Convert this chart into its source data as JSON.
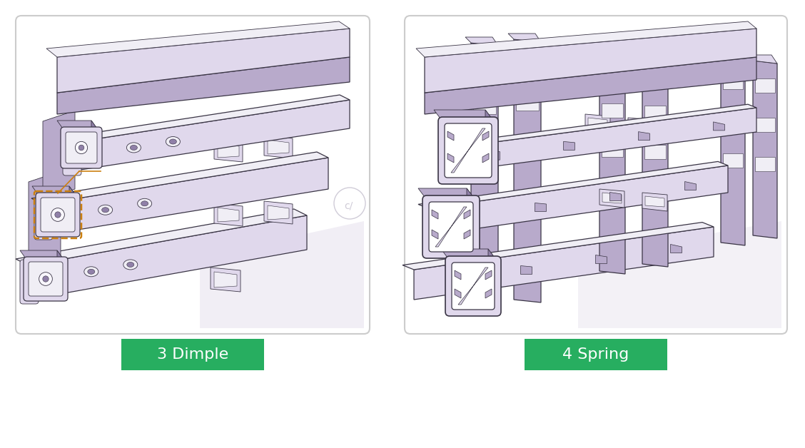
{
  "background_color": "#ffffff",
  "fig_width": 11.28,
  "fig_height": 6.28,
  "dpi": 100,
  "left_label": "3 Dimple",
  "right_label": "4 Spring",
  "label_bg_color": "#27ae60",
  "label_text_color": "#ffffff",
  "label_fontsize": 16,
  "label_font": "DejaVu Sans",
  "purple_fill": "#c8bcd8",
  "purple_mid": "#b8aacb",
  "purple_light": "#e0d8ec",
  "purple_dark": "#9080a8",
  "white_sheen": "#f0eef5",
  "near_white": "#f8f6fc",
  "dark_line": "#3a3545",
  "orange_annot": "#cc8010",
  "floor_color": "#e8e4ef",
  "bg_gradient_top": "#f5f3f8",
  "bg_gradient_bot": "#eceaf2"
}
